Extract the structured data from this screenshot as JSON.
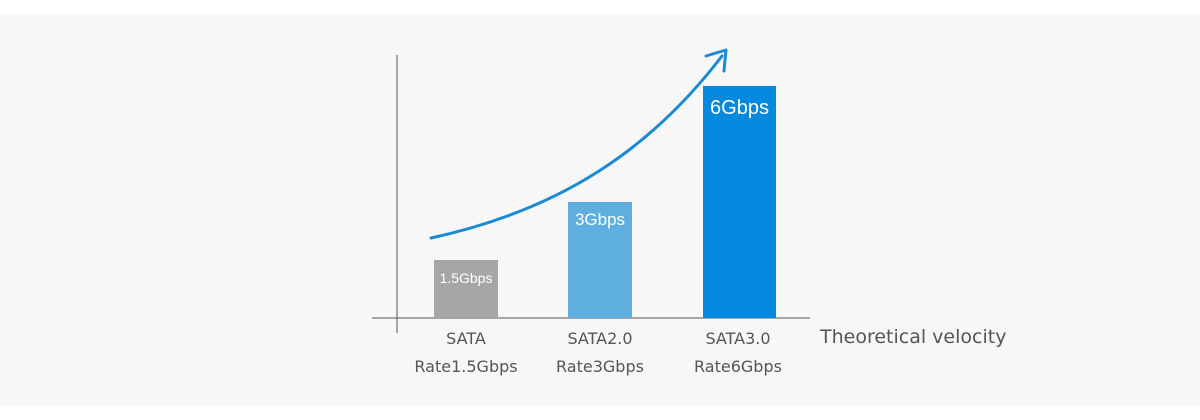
{
  "chart_data": {
    "type": "bar",
    "categories": [
      {
        "line1": "SATA",
        "line2": "Rate1.5Gbps"
      },
      {
        "line1": "SATA2.0",
        "line2": "Rate3Gbps"
      },
      {
        "line1": "SATA3.0",
        "line2": "Rate6Gbps"
      }
    ],
    "values": [
      1.5,
      3,
      6
    ],
    "data_labels": [
      "1.5Gbps",
      "3Gbps",
      "6Gbps"
    ],
    "bar_colors": [
      "#a8a6a4",
      "#5eaee0",
      "#0589de"
    ],
    "trend_arrow_color": "#1a8ad6",
    "axis_color": "#555555",
    "xlabel": "Theoretical velocity",
    "ylabel": "",
    "ylim": [
      0,
      6.8
    ],
    "grid": false,
    "trend_arrow": true
  }
}
